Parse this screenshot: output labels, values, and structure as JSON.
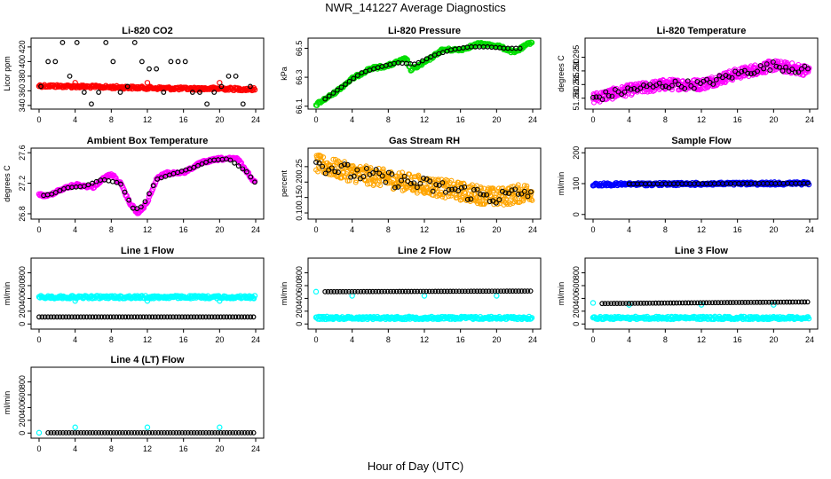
{
  "page": {
    "title": "NWR_141227  Average Diagnostics",
    "xlabel": "Hour of Day (UTC)"
  },
  "colors": {
    "black": "#000000",
    "red": "#ff0000",
    "green": "#00dd00",
    "magenta": "#ff00ff",
    "orange": "#ffa500",
    "blue": "#0000ff",
    "cyan": "#00ffff"
  },
  "x_ticks": [
    "0",
    "4",
    "8",
    "12",
    "16",
    "20",
    "24"
  ],
  "chart_data": [
    {
      "id": "li820-co2",
      "type": "scatter",
      "title": "Li-820 CO2",
      "ylabel": "Licor ppm",
      "xlim": [
        0,
        24
      ],
      "ylim": [
        335,
        432
      ],
      "yticks": [
        "340",
        "360",
        "380",
        "400",
        "420"
      ],
      "series": [
        {
          "color": "red",
          "kind": "band",
          "x": [
            0,
            4,
            8,
            12,
            16,
            20,
            24
          ],
          "values": [
            367,
            366,
            365,
            364,
            363,
            363,
            362
          ]
        },
        {
          "color": "red",
          "kind": "points",
          "x": [
            4,
            12,
            20
          ],
          "values": [
            371,
            371,
            371
          ]
        },
        {
          "color": "black",
          "kind": "sparse-levels",
          "levels": [
            342,
            358,
            366,
            380,
            390,
            400,
            426
          ]
        }
      ]
    },
    {
      "id": "li820-pressure",
      "type": "scatter",
      "title": "Li-820 Pressure",
      "ylabel": "kPa",
      "xlim": [
        0,
        24
      ],
      "ylim": [
        66.08,
        66.57
      ],
      "yticks": [
        "66.1",
        "66.3",
        "66.5"
      ],
      "series": [
        {
          "color": "green",
          "kind": "band",
          "x": [
            0,
            2,
            4,
            6,
            8,
            10,
            10.5,
            12,
            14,
            16,
            18,
            20,
            22,
            24
          ],
          "values": [
            66.11,
            66.19,
            66.29,
            66.36,
            66.38,
            66.43,
            66.35,
            66.4,
            66.49,
            66.49,
            66.53,
            66.52,
            66.47,
            66.55
          ]
        },
        {
          "color": "black",
          "kind": "points-on-line",
          "x": [
            1,
            3,
            5,
            7,
            9,
            11,
            13,
            15,
            17,
            19,
            21,
            23
          ],
          "values": [
            66.15,
            66.24,
            66.33,
            66.37,
            66.4,
            66.39,
            66.45,
            66.49,
            66.51,
            66.51,
            66.5,
            66.5
          ]
        }
      ]
    },
    {
      "id": "li820-temperature",
      "type": "scatter",
      "title": "Li-820 Temperature",
      "ylabel": "degrees C",
      "xlim": [
        0,
        24
      ],
      "ylim": [
        51.276,
        51.302
      ],
      "yticks": [
        "51.280",
        "51.285",
        "51.290",
        "51.295"
      ],
      "series": [
        {
          "color": "magenta",
          "kind": "scatter-trend",
          "x": [
            0,
            4,
            8,
            12,
            16,
            20,
            24
          ],
          "values": [
            51.28,
            51.283,
            51.285,
            51.285,
            51.289,
            51.292,
            51.29
          ],
          "spread": 0.004
        },
        {
          "color": "black",
          "kind": "scatter-trend-sparse",
          "x": [
            0,
            4,
            8,
            12,
            16,
            20,
            24
          ],
          "values": [
            51.28,
            51.283,
            51.285,
            51.285,
            51.289,
            51.292,
            51.29
          ],
          "spread": 0.003
        }
      ]
    },
    {
      "id": "ambient-box-temperature",
      "type": "scatter",
      "title": "Ambient Box Temperature",
      "ylabel": "degrees C",
      "xlim": [
        0,
        24
      ],
      "ylim": [
        26.73,
        27.66
      ],
      "yticks": [
        "26.8",
        "27.2",
        "27.6"
      ],
      "series": [
        {
          "color": "magenta",
          "kind": "band",
          "x": [
            0,
            1,
            2,
            4,
            6,
            7,
            8,
            9,
            10,
            11,
            12,
            13,
            14,
            16,
            18,
            20,
            22,
            23,
            24
          ],
          "values": [
            27.05,
            27.03,
            27.1,
            27.18,
            27.15,
            27.25,
            27.32,
            27.2,
            26.95,
            26.8,
            26.95,
            27.25,
            27.33,
            27.34,
            27.47,
            27.52,
            27.52,
            27.35,
            27.2
          ]
        },
        {
          "color": "black",
          "kind": "points-on-line",
          "x": [
            0.5,
            1.5,
            3,
            5,
            7,
            9,
            10.5,
            11.5,
            13,
            15,
            17,
            19,
            21,
            23,
            24
          ],
          "values": [
            27.04,
            27.06,
            27.14,
            27.16,
            27.25,
            27.2,
            26.85,
            26.9,
            27.25,
            27.33,
            27.4,
            27.5,
            27.52,
            27.35,
            27.2
          ]
        }
      ]
    },
    {
      "id": "gas-stream-rh",
      "type": "scatter",
      "title": "Gas Stream RH",
      "ylabel": "percent",
      "xlim": [
        0,
        24
      ],
      "ylim": [
        0.08,
        0.31
      ],
      "yticks": [
        "0.10",
        "0.15",
        "0.20",
        "0.25"
      ],
      "series": [
        {
          "color": "orange",
          "kind": "scatter-trend",
          "x": [
            0,
            4,
            8,
            12,
            16,
            20,
            24
          ],
          "values": [
            0.26,
            0.23,
            0.21,
            0.19,
            0.17,
            0.15,
            0.17
          ],
          "spread": 0.06
        },
        {
          "color": "black",
          "kind": "scatter-trend-sparse",
          "x": [
            0,
            4,
            8,
            12,
            16,
            20,
            24
          ],
          "values": [
            0.26,
            0.23,
            0.21,
            0.19,
            0.17,
            0.15,
            0.17
          ],
          "spread": 0.05
        }
      ]
    },
    {
      "id": "sample-flow",
      "type": "scatter",
      "title": "Sample Flow",
      "ylabel": "ml/min",
      "xlim": [
        0,
        24
      ],
      "ylim": [
        -15,
        215
      ],
      "yticks": [
        "0",
        "100",
        "200"
      ],
      "series": [
        {
          "color": "blue",
          "kind": "band",
          "x": [
            0,
            4,
            24
          ],
          "values": [
            97,
            98,
            101
          ]
        },
        {
          "color": "black",
          "kind": "points-on-line",
          "x": [
            4,
            24
          ],
          "values": [
            99,
            101
          ]
        }
      ]
    },
    {
      "id": "line1-flow",
      "type": "scatter",
      "title": "Line 1 Flow",
      "ylabel": "ml/min",
      "xlim": [
        0,
        24
      ],
      "ylim": [
        -80,
        1030
      ],
      "yticks": [
        "0",
        "200",
        "400",
        "600",
        "800"
      ],
      "series": [
        {
          "color": "cyan",
          "kind": "band",
          "x": [
            0,
            24
          ],
          "values": [
            420,
            420
          ]
        },
        {
          "color": "cyan",
          "kind": "points",
          "x": [
            4,
            12,
            20
          ],
          "values": [
            360,
            360,
            360
          ]
        },
        {
          "color": "black",
          "kind": "dots-line",
          "x": [
            0,
            24
          ],
          "values": [
            110,
            110
          ]
        }
      ]
    },
    {
      "id": "line2-flow",
      "type": "scatter",
      "title": "Line 2 Flow",
      "ylabel": "ml/min",
      "xlim": [
        0,
        24
      ],
      "ylim": [
        -80,
        1030
      ],
      "yticks": [
        "0",
        "200",
        "400",
        "600",
        "800"
      ],
      "series": [
        {
          "color": "cyan",
          "kind": "band",
          "x": [
            0,
            24
          ],
          "values": [
            95,
            95
          ]
        },
        {
          "color": "cyan",
          "kind": "points",
          "x": [
            0,
            4,
            12,
            20
          ],
          "values": [
            505,
            440,
            440,
            440
          ]
        },
        {
          "color": "black",
          "kind": "dots-line",
          "x": [
            1,
            24
          ],
          "values": [
            505,
            515
          ]
        }
      ]
    },
    {
      "id": "line3-flow",
      "type": "scatter",
      "title": "Line 3 Flow",
      "ylabel": "ml/min",
      "xlim": [
        0,
        24
      ],
      "ylim": [
        -80,
        1030
      ],
      "yticks": [
        "0",
        "200",
        "400",
        "600",
        "800"
      ],
      "series": [
        {
          "color": "cyan",
          "kind": "band",
          "x": [
            0,
            24
          ],
          "values": [
            95,
            95
          ]
        },
        {
          "color": "cyan",
          "kind": "points",
          "x": [
            0,
            4,
            12,
            20
          ],
          "values": [
            330,
            300,
            300,
            300
          ]
        },
        {
          "color": "black",
          "kind": "dots-line",
          "x": [
            1,
            24
          ],
          "values": [
            320,
            345
          ]
        }
      ]
    },
    {
      "id": "line4-flow",
      "type": "scatter",
      "title": "Line 4 (LT) Flow",
      "ylabel": "ml/min",
      "xlim": [
        0,
        24
      ],
      "ylim": [
        -80,
        1030
      ],
      "yticks": [
        "0",
        "200",
        "400",
        "600",
        "800"
      ],
      "series": [
        {
          "color": "cyan",
          "kind": "points",
          "x": [
            0,
            4,
            12,
            20
          ],
          "values": [
            5,
            90,
            90,
            90
          ]
        },
        {
          "color": "black",
          "kind": "dots-line",
          "x": [
            1,
            24
          ],
          "values": [
            5,
            5
          ]
        }
      ]
    }
  ]
}
